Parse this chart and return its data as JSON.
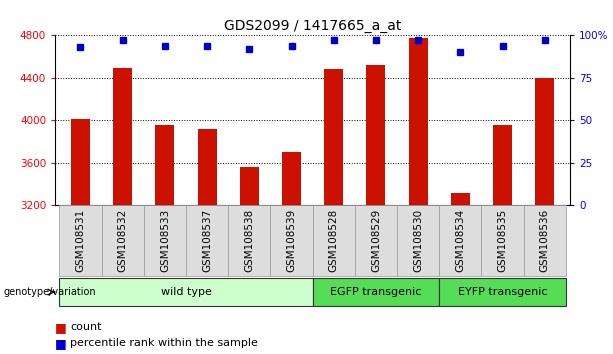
{
  "title": "GDS2099 / 1417665_a_at",
  "samples": [
    "GSM108531",
    "GSM108532",
    "GSM108533",
    "GSM108537",
    "GSM108538",
    "GSM108539",
    "GSM108528",
    "GSM108529",
    "GSM108530",
    "GSM108534",
    "GSM108535",
    "GSM108536"
  ],
  "counts": [
    4010,
    4490,
    3960,
    3920,
    3560,
    3700,
    4480,
    4520,
    4780,
    3320,
    3960,
    4400
  ],
  "percentiles": [
    93,
    97,
    94,
    94,
    92,
    94,
    97,
    97,
    97,
    90,
    94,
    97
  ],
  "y_min": 3200,
  "y_max": 4800,
  "y_ticks": [
    3200,
    3600,
    4000,
    4400,
    4800
  ],
  "y_right_ticks": [
    0,
    25,
    50,
    75,
    100
  ],
  "bar_color": "#cc1100",
  "dot_color": "#0000cc",
  "groups": [
    {
      "label": "wild type",
      "start": 0,
      "end": 6,
      "color": "#ccffcc"
    },
    {
      "label": "EGFP transgenic",
      "start": 6,
      "end": 9,
      "color": "#55dd55"
    },
    {
      "label": "EYFP transgenic",
      "start": 9,
      "end": 12,
      "color": "#55dd55"
    }
  ],
  "group_label": "genotype/variation",
  "legend_count": "count",
  "legend_percentile": "percentile rank within the sample",
  "title_fontsize": 10,
  "tick_fontsize": 7.5,
  "group_fontsize": 8
}
